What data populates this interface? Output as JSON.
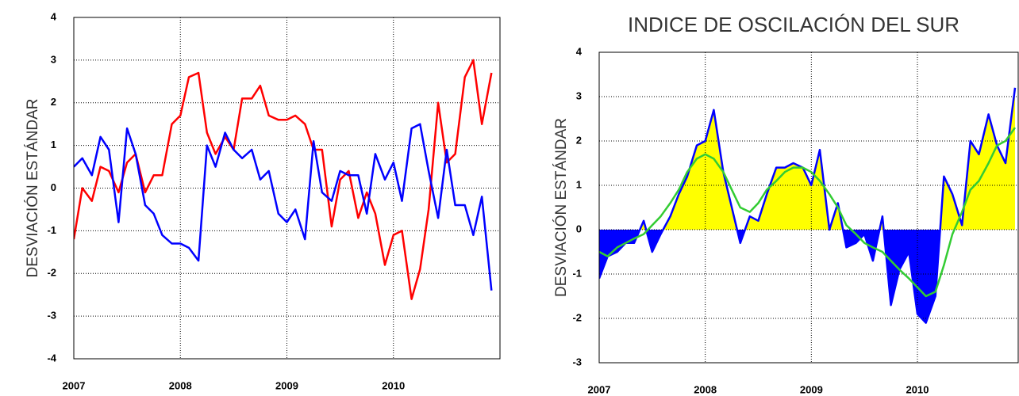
{
  "chart_data": [
    {
      "type": "line",
      "y_label": "DESVIACIÓN ESTÁNDAR",
      "x": [
        2007.0,
        2007.08,
        2007.17,
        2007.25,
        2007.33,
        2007.42,
        2007.5,
        2007.58,
        2007.67,
        2007.75,
        2007.83,
        2007.92,
        2008.0,
        2008.08,
        2008.17,
        2008.25,
        2008.33,
        2008.42,
        2008.5,
        2008.58,
        2008.67,
        2008.75,
        2008.83,
        2008.92,
        2009.0,
        2009.08,
        2009.17,
        2009.25,
        2009.33,
        2009.42,
        2009.5,
        2009.58,
        2009.67,
        2009.75,
        2009.83,
        2009.92,
        2010.0,
        2010.08,
        2010.17,
        2010.25,
        2010.33,
        2010.42,
        2010.5,
        2010.58,
        2010.67,
        2010.75,
        2010.83,
        2010.92
      ],
      "series": [
        {
          "color": "#ff0000",
          "values": [
            -1.2,
            0.0,
            -0.3,
            0.5,
            0.4,
            -0.1,
            0.6,
            0.8,
            -0.1,
            0.3,
            0.3,
            1.5,
            1.7,
            2.6,
            2.7,
            1.3,
            0.8,
            1.2,
            0.9,
            2.1,
            2.1,
            2.4,
            1.7,
            1.6,
            1.6,
            1.7,
            1.5,
            0.9,
            0.9,
            -0.9,
            0.2,
            0.4,
            -0.7,
            -0.1,
            -0.6,
            -1.8,
            -1.1,
            -1.0,
            -2.6,
            -1.9,
            -0.5,
            2.0,
            0.6,
            0.8,
            2.6,
            3.0,
            1.5,
            2.7
          ]
        },
        {
          "color": "#0000ff",
          "values": [
            0.5,
            0.7,
            0.3,
            1.2,
            0.9,
            -0.8,
            1.4,
            0.8,
            -0.4,
            -0.6,
            -1.1,
            -1.3,
            -1.3,
            -1.4,
            -1.7,
            1.0,
            0.5,
            1.3,
            0.9,
            0.7,
            0.9,
            0.2,
            0.4,
            -0.6,
            -0.8,
            -0.5,
            -1.2,
            1.1,
            -0.1,
            -0.3,
            0.4,
            0.3,
            0.3,
            -0.6,
            0.8,
            0.2,
            0.6,
            -0.3,
            1.4,
            1.5,
            0.4,
            -0.7,
            0.9,
            -0.4,
            -0.4,
            -1.1,
            -0.2,
            -2.4
          ]
        }
      ],
      "xlim": [
        2007,
        2011
      ],
      "xticks": [
        2007,
        2008,
        2009,
        2010
      ],
      "ylim": [
        -4,
        4
      ],
      "yticks": [
        -4,
        -3,
        -2,
        -1,
        0,
        1,
        2,
        3,
        4
      ],
      "grid": true
    },
    {
      "type": "area",
      "title": "INDICE DE OSCILACIÓN DEL SUR",
      "y_label": "DESVIACIÓN ESTÁNDAR",
      "x": [
        2007.0,
        2007.08,
        2007.17,
        2007.25,
        2007.33,
        2007.42,
        2007.5,
        2007.58,
        2007.67,
        2007.75,
        2007.83,
        2007.92,
        2008.0,
        2008.08,
        2008.17,
        2008.25,
        2008.33,
        2008.42,
        2008.5,
        2008.58,
        2008.67,
        2008.75,
        2008.83,
        2008.92,
        2009.0,
        2009.08,
        2009.17,
        2009.25,
        2009.33,
        2009.42,
        2009.5,
        2009.58,
        2009.67,
        2009.75,
        2009.83,
        2009.92,
        2010.0,
        2010.08,
        2010.17,
        2010.25,
        2010.33,
        2010.42,
        2010.5,
        2010.58,
        2010.67,
        2010.75,
        2010.83,
        2010.92
      ],
      "series": [
        {
          "color": "#0000ff",
          "fill_above_color": "#ffff00",
          "fill_below_color": "#0000ff",
          "values": [
            -1.1,
            -0.6,
            -0.5,
            -0.3,
            -0.3,
            0.2,
            -0.5,
            -0.1,
            0.3,
            0.8,
            1.2,
            1.9,
            2.0,
            2.7,
            1.3,
            0.5,
            -0.3,
            0.3,
            0.2,
            0.8,
            1.4,
            1.4,
            1.5,
            1.4,
            1.0,
            1.8,
            0.0,
            0.6,
            -0.4,
            -0.3,
            -0.1,
            -0.7,
            0.3,
            -1.7,
            -0.9,
            -0.5,
            -1.9,
            -2.1,
            -1.5,
            1.2,
            0.8,
            0.1,
            2.0,
            1.7,
            2.6,
            1.9,
            1.5,
            3.2
          ]
        },
        {
          "color": "#33cc33",
          "values": [
            -0.5,
            -0.6,
            -0.4,
            -0.3,
            -0.2,
            -0.1,
            0.1,
            0.3,
            0.6,
            0.9,
            1.3,
            1.6,
            1.7,
            1.6,
            1.3,
            0.9,
            0.5,
            0.4,
            0.6,
            0.9,
            1.1,
            1.3,
            1.4,
            1.4,
            1.3,
            1.1,
            0.8,
            0.5,
            0.1,
            -0.1,
            -0.3,
            -0.4,
            -0.5,
            -0.7,
            -0.9,
            -1.1,
            -1.3,
            -1.5,
            -1.4,
            -0.8,
            -0.1,
            0.4,
            0.9,
            1.1,
            1.5,
            1.9,
            2.0,
            2.3
          ]
        }
      ],
      "xlim": [
        2007,
        2010.95
      ],
      "xticks": [
        2007,
        2008,
        2009,
        2010
      ],
      "ylim": [
        -3,
        4
      ],
      "yticks": [
        -3,
        -2,
        -1,
        0,
        1,
        2,
        3,
        4
      ],
      "grid": true
    }
  ]
}
